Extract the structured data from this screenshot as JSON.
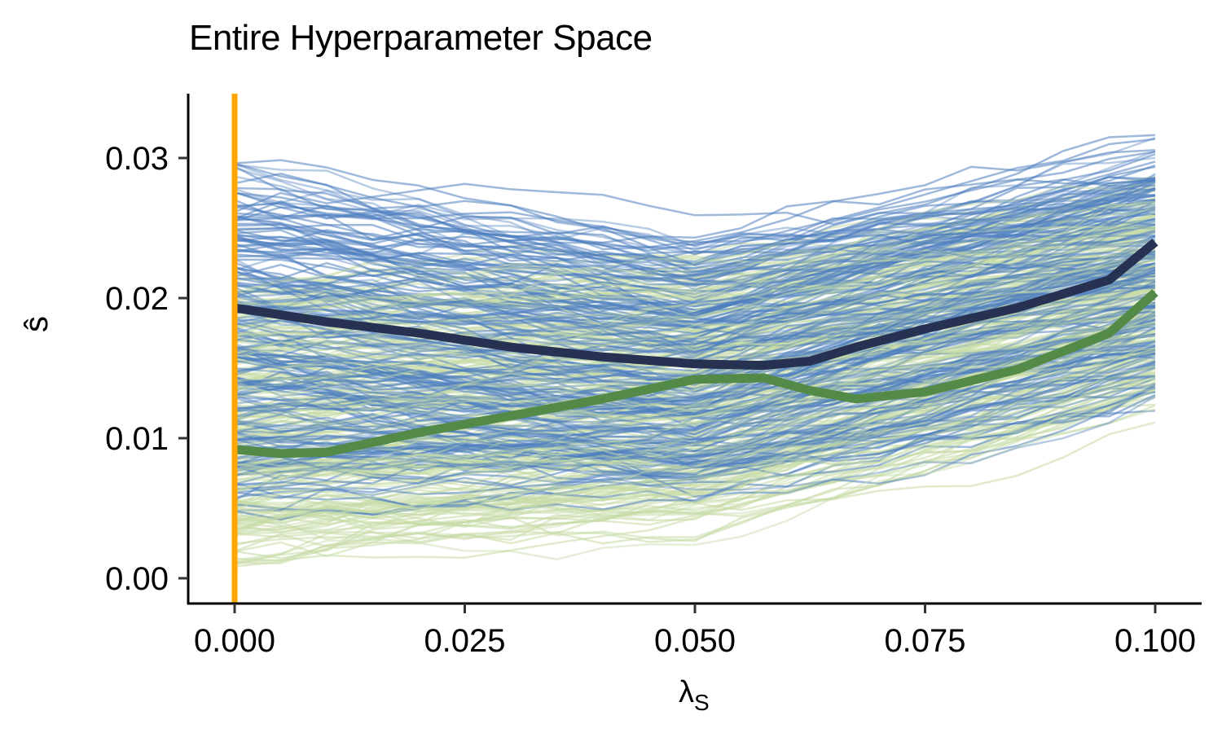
{
  "chart_data": {
    "type": "line",
    "title": "Entire Hyperparameter Space",
    "xlabel": "λ_S",
    "ylabel": "ŝ",
    "xlim": [
      -0.005,
      0.105
    ],
    "ylim": [
      -0.0015,
      0.0345
    ],
    "x_ticks": [
      "0.000",
      "0.025",
      "0.050",
      "0.075",
      "0.100"
    ],
    "y_ticks": [
      "0.00",
      "0.01",
      "0.02",
      "0.03"
    ],
    "grid": false,
    "legend": "none",
    "vline": {
      "x": 0.0,
      "color": "#FFA500"
    },
    "x": [
      0.0,
      0.005,
      0.01,
      0.02,
      0.03,
      0.04,
      0.05,
      0.0575,
      0.0625,
      0.0675,
      0.075,
      0.085,
      0.095,
      0.1
    ],
    "series": [
      {
        "name": "blue mean",
        "color": "#273253",
        "values": [
          0.0193,
          0.0188,
          0.0183,
          0.0175,
          0.0165,
          0.0158,
          0.0153,
          0.0152,
          0.0155,
          0.0165,
          0.0178,
          0.0193,
          0.0213,
          0.024
        ]
      },
      {
        "name": "green mean",
        "color": "#548a47",
        "values": [
          0.0092,
          0.0089,
          0.009,
          0.0104,
          0.0116,
          0.0128,
          0.0142,
          0.0143,
          0.0134,
          0.0128,
          0.0133,
          0.0149,
          0.0175,
          0.0204
        ]
      }
    ],
    "background_bands": [
      {
        "name": "blue individual runs",
        "color": "#4f80c0",
        "approx_range_at_x": {
          "0.000": [
            0.006,
            0.029
          ],
          "0.050": [
            0.006,
            0.024
          ],
          "0.100": [
            0.014,
            0.0305
          ]
        }
      },
      {
        "name": "green individual runs",
        "color": "#c6dba6",
        "approx_range_at_x": {
          "0.000": [
            0.0012,
            0.02
          ],
          "0.050": [
            0.004,
            0.022
          ],
          "0.100": [
            0.013,
            0.027
          ]
        }
      }
    ]
  },
  "title": "Entire Hyperparameter Space",
  "axes": {
    "xlabel_main": "λ",
    "xlabel_sub": "S",
    "ylabel": "ŝ",
    "x_ticks": [
      "0.000",
      "0.025",
      "0.050",
      "0.075",
      "0.100"
    ],
    "y_ticks": [
      "0.00",
      "0.01",
      "0.02",
      "0.03"
    ]
  },
  "colors": {
    "vline": "#FFA500",
    "blue_lines": "#4f80c0",
    "green_lines": "#c6dba6",
    "blue_mean": "#273253",
    "green_mean": "#548a47"
  }
}
